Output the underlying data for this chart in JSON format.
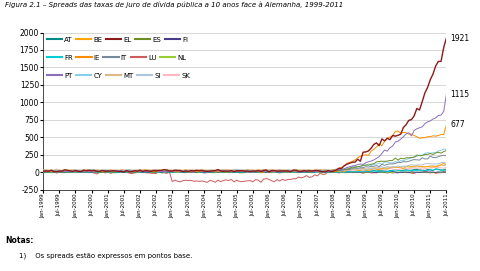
{
  "title": "Figura 2.1 – Spreads das taxas de juro de dívida pública a 10 anos face à Alemanha, 1999-2011",
  "ylim": [
    -250,
    2000
  ],
  "yticks": [
    -250,
    0,
    250,
    500,
    750,
    1000,
    1250,
    1500,
    1750,
    2000
  ],
  "note": "Notas:",
  "note2": "1)    Os spreads estão expressos em pontos base.",
  "legend": [
    {
      "label": "AT",
      "color": "#008B8B"
    },
    {
      "label": "BE",
      "color": "#FFA500"
    },
    {
      "label": "EL",
      "color": "#8B1A1A"
    },
    {
      "label": "ES",
      "color": "#6B8E23"
    },
    {
      "label": "FI",
      "color": "#483D8B"
    },
    {
      "label": "FR",
      "color": "#00CED1"
    },
    {
      "label": "IE",
      "color": "#FF8C00"
    },
    {
      "label": "IT",
      "color": "#778899"
    },
    {
      "label": "LU",
      "color": "#CD5C5C"
    },
    {
      "label": "NL",
      "color": "#9ACD32"
    },
    {
      "label": "PT",
      "color": "#8A6FBF"
    },
    {
      "label": "CY",
      "color": "#87CEEB"
    },
    {
      "label": "MT",
      "color": "#DEB887"
    },
    {
      "label": "SI",
      "color": "#B0C4DE"
    },
    {
      "label": "SK",
      "color": "#FFB6C1"
    }
  ],
  "background_color": "#ffffff",
  "grid_color": "#c8c8c8"
}
